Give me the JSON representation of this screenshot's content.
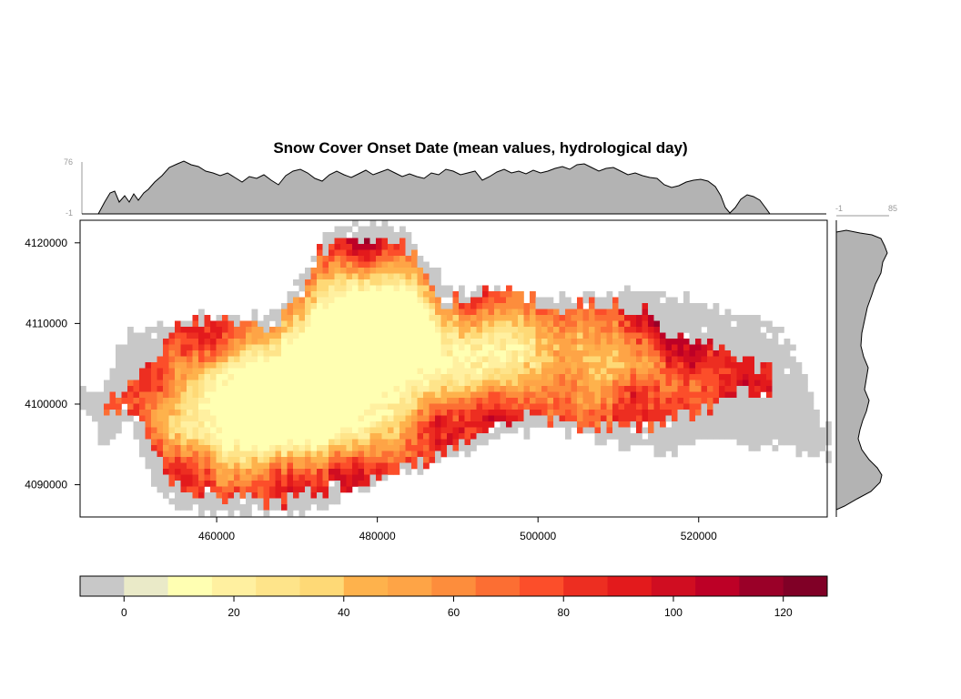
{
  "chart_data": {
    "type": "heatmap",
    "title": "Snow Cover Onset Date (mean values, hydrological day)",
    "x_ticks": [
      460000,
      480000,
      500000,
      520000
    ],
    "y_ticks": [
      4090000,
      4100000,
      4110000,
      4120000
    ],
    "xlim": [
      443000,
      536000
    ],
    "ylim": [
      4086000,
      4122800
    ],
    "top_marginal": {
      "min_label": "-1",
      "max_label": "76"
    },
    "right_marginal": {
      "min_label": "-1",
      "max_label": "85"
    },
    "colorbar": {
      "breaks": [
        -8,
        0,
        8,
        16,
        24,
        32,
        40,
        48,
        56,
        64,
        72,
        80,
        88,
        96,
        104,
        112,
        120,
        128
      ],
      "colors": [
        "#c8c8c8",
        "#eaeac8",
        "#ffffb2",
        "#fff0a0",
        "#fee48a",
        "#fed976",
        "#feb24c",
        "#fea446",
        "#fd8d3c",
        "#fc6e33",
        "#fc4e2a",
        "#ed2e21",
        "#e31a1c",
        "#d00d21",
        "#bd0026",
        "#9a0028",
        "#800026"
      ],
      "tick_labels": [
        "0",
        "20",
        "40",
        "60",
        "80",
        "100",
        "120"
      ]
    },
    "no_snow_color": "#c8c8c8",
    "profile_fill": "#b3b3b3"
  }
}
